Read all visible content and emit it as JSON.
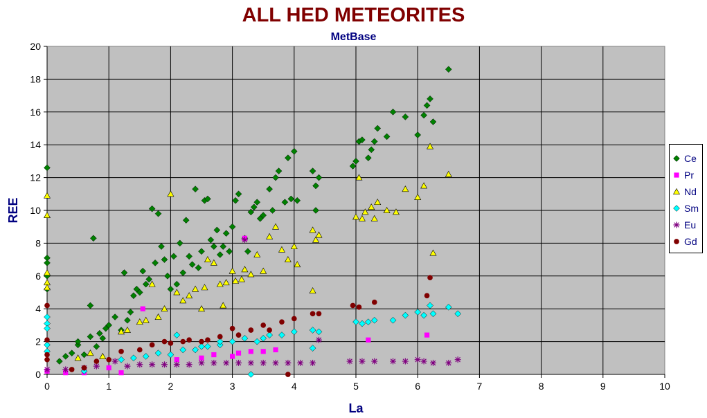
{
  "chart_data": {
    "type": "scatter",
    "title": "ALL HED METEORITES",
    "subtitle": "MetBase",
    "xlabel": "La",
    "ylabel": "REE",
    "xlim": [
      0,
      10
    ],
    "ylim": [
      0,
      20
    ],
    "x_ticks": [
      0,
      1,
      2,
      3,
      4,
      5,
      6,
      7,
      8,
      9,
      10
    ],
    "y_ticks": [
      0,
      2,
      4,
      6,
      8,
      10,
      12,
      14,
      16,
      18,
      20
    ],
    "grid": true,
    "plot_background": "#c0c0c0",
    "legend_position": "right",
    "series": [
      {
        "name": "Ce",
        "color": "#008000",
        "marker": "diamond",
        "points": [
          [
            0,
            12.6
          ],
          [
            0,
            7.1
          ],
          [
            0,
            6.8
          ],
          [
            0,
            6.0
          ],
          [
            0,
            5.2
          ],
          [
            0.2,
            0.8
          ],
          [
            0.3,
            1.1
          ],
          [
            0.4,
            1.3
          ],
          [
            0.5,
            1.8
          ],
          [
            0.5,
            2.0
          ],
          [
            0.6,
            1.2
          ],
          [
            0.7,
            2.3
          ],
          [
            0.7,
            4.2
          ],
          [
            0.75,
            8.3
          ],
          [
            0.8,
            1.7
          ],
          [
            0.85,
            2.5
          ],
          [
            0.9,
            2.2
          ],
          [
            0.95,
            2.8
          ],
          [
            1.0,
            3.0
          ],
          [
            1.1,
            3.5
          ],
          [
            1.2,
            2.7
          ],
          [
            1.25,
            6.2
          ],
          [
            1.3,
            3.3
          ],
          [
            1.35,
            3.8
          ],
          [
            1.4,
            4.8
          ],
          [
            1.45,
            5.2
          ],
          [
            1.5,
            5.0
          ],
          [
            1.55,
            6.3
          ],
          [
            1.6,
            5.5
          ],
          [
            1.65,
            5.8
          ],
          [
            1.7,
            10.1
          ],
          [
            1.75,
            6.8
          ],
          [
            1.8,
            9.8
          ],
          [
            1.85,
            7.8
          ],
          [
            1.9,
            7.0
          ],
          [
            1.95,
            6.0
          ],
          [
            2.0,
            5.2
          ],
          [
            2.05,
            7.2
          ],
          [
            2.1,
            5.5
          ],
          [
            2.15,
            8.0
          ],
          [
            2.2,
            6.2
          ],
          [
            2.25,
            9.4
          ],
          [
            2.3,
            7.2
          ],
          [
            2.35,
            6.7
          ],
          [
            2.4,
            11.3
          ],
          [
            2.45,
            6.5
          ],
          [
            2.5,
            7.5
          ],
          [
            2.55,
            10.6
          ],
          [
            2.6,
            10.7
          ],
          [
            2.65,
            8.2
          ],
          [
            2.7,
            7.8
          ],
          [
            2.75,
            8.8
          ],
          [
            2.8,
            7.3
          ],
          [
            2.85,
            7.8
          ],
          [
            2.9,
            8.6
          ],
          [
            2.95,
            7.5
          ],
          [
            3.0,
            9.0
          ],
          [
            3.05,
            10.6
          ],
          [
            3.1,
            11.0
          ],
          [
            3.2,
            8.3
          ],
          [
            3.25,
            7.5
          ],
          [
            3.3,
            9.9
          ],
          [
            3.35,
            10.2
          ],
          [
            3.4,
            10.5
          ],
          [
            3.45,
            9.5
          ],
          [
            3.5,
            9.7
          ],
          [
            3.6,
            11.3
          ],
          [
            3.65,
            10.0
          ],
          [
            3.7,
            12.0
          ],
          [
            3.75,
            12.4
          ],
          [
            3.85,
            10.5
          ],
          [
            3.9,
            13.2
          ],
          [
            3.95,
            10.7
          ],
          [
            4.0,
            13.6
          ],
          [
            4.05,
            10.6
          ],
          [
            4.3,
            12.4
          ],
          [
            4.35,
            11.5
          ],
          [
            4.4,
            12.0
          ],
          [
            4.35,
            10.0
          ],
          [
            4.95,
            12.7
          ],
          [
            5.0,
            13.0
          ],
          [
            5.05,
            14.2
          ],
          [
            5.1,
            14.3
          ],
          [
            5.2,
            13.2
          ],
          [
            5.25,
            13.7
          ],
          [
            5.3,
            14.2
          ],
          [
            5.35,
            15.0
          ],
          [
            5.5,
            14.5
          ],
          [
            5.6,
            16.0
          ],
          [
            5.8,
            15.7
          ],
          [
            6.0,
            14.6
          ],
          [
            6.1,
            15.8
          ],
          [
            6.15,
            16.4
          ],
          [
            6.2,
            16.8
          ],
          [
            6.25,
            15.4
          ],
          [
            6.5,
            18.6
          ]
        ]
      },
      {
        "name": "Pr",
        "color": "#ff00ff",
        "marker": "square",
        "points": [
          [
            0,
            0.2
          ],
          [
            0.3,
            0.1
          ],
          [
            0.6,
            0.1
          ],
          [
            1.0,
            0.4
          ],
          [
            1.2,
            0.1
          ],
          [
            1.55,
            4.0
          ],
          [
            2.1,
            0.9
          ],
          [
            2.5,
            1.0
          ],
          [
            2.7,
            1.2
          ],
          [
            3.0,
            1.1
          ],
          [
            3.1,
            1.3
          ],
          [
            3.2,
            8.3
          ],
          [
            3.3,
            1.4
          ],
          [
            3.5,
            1.4
          ],
          [
            3.7,
            1.5
          ],
          [
            5.2,
            2.1
          ],
          [
            6.15,
            2.4
          ]
        ]
      },
      {
        "name": "Nd",
        "color": "#ffff00",
        "marker": "triangle",
        "points": [
          [
            0,
            10.9
          ],
          [
            0,
            9.7
          ],
          [
            0,
            6.2
          ],
          [
            0,
            5.6
          ],
          [
            0,
            5.3
          ],
          [
            0.5,
            1.0
          ],
          [
            0.7,
            1.3
          ],
          [
            0.9,
            1.1
          ],
          [
            1.2,
            2.6
          ],
          [
            1.3,
            2.7
          ],
          [
            1.5,
            3.2
          ],
          [
            1.6,
            3.3
          ],
          [
            1.7,
            5.5
          ],
          [
            1.8,
            3.5
          ],
          [
            1.9,
            4.0
          ],
          [
            2.0,
            11.0
          ],
          [
            2.1,
            5.0
          ],
          [
            2.2,
            4.5
          ],
          [
            2.3,
            4.8
          ],
          [
            2.4,
            5.2
          ],
          [
            2.5,
            4.0
          ],
          [
            2.55,
            5.3
          ],
          [
            2.6,
            7.0
          ],
          [
            2.7,
            6.8
          ],
          [
            2.8,
            5.5
          ],
          [
            2.85,
            4.2
          ],
          [
            2.9,
            5.6
          ],
          [
            3.0,
            6.3
          ],
          [
            3.05,
            5.7
          ],
          [
            3.15,
            5.8
          ],
          [
            3.2,
            6.4
          ],
          [
            3.3,
            6.1
          ],
          [
            3.4,
            7.3
          ],
          [
            3.5,
            6.3
          ],
          [
            3.6,
            8.4
          ],
          [
            3.7,
            9.0
          ],
          [
            3.8,
            7.6
          ],
          [
            3.9,
            7.0
          ],
          [
            4.0,
            7.8
          ],
          [
            4.05,
            6.7
          ],
          [
            4.3,
            8.8
          ],
          [
            4.35,
            8.2
          ],
          [
            4.4,
            8.5
          ],
          [
            4.3,
            5.1
          ],
          [
            5.0,
            9.6
          ],
          [
            5.05,
            12.0
          ],
          [
            5.1,
            9.5
          ],
          [
            5.15,
            9.9
          ],
          [
            5.25,
            10.2
          ],
          [
            5.3,
            9.5
          ],
          [
            5.35,
            10.5
          ],
          [
            5.5,
            10.0
          ],
          [
            5.65,
            9.9
          ],
          [
            5.8,
            11.3
          ],
          [
            6.0,
            10.8
          ],
          [
            6.1,
            11.5
          ],
          [
            6.2,
            13.9
          ],
          [
            6.25,
            7.4
          ],
          [
            6.5,
            12.2
          ]
        ]
      },
      {
        "name": "Sm",
        "color": "#00ffff",
        "marker": "diamond",
        "points": [
          [
            0,
            3.5
          ],
          [
            0,
            3.1
          ],
          [
            0,
            2.8
          ],
          [
            0,
            1.8
          ],
          [
            0,
            1.4
          ],
          [
            0.6,
            0.2
          ],
          [
            1.2,
            0.9
          ],
          [
            1.4,
            1.0
          ],
          [
            1.6,
            1.1
          ],
          [
            1.8,
            1.3
          ],
          [
            2.0,
            1.2
          ],
          [
            2.1,
            2.4
          ],
          [
            2.2,
            1.5
          ],
          [
            2.4,
            1.5
          ],
          [
            2.5,
            1.7
          ],
          [
            2.6,
            1.7
          ],
          [
            2.8,
            1.8
          ],
          [
            3.0,
            2.0
          ],
          [
            3.2,
            2.2
          ],
          [
            3.4,
            2.0
          ],
          [
            3.5,
            2.2
          ],
          [
            3.6,
            2.4
          ],
          [
            3.8,
            2.4
          ],
          [
            4.0,
            2.6
          ],
          [
            4.3,
            2.7
          ],
          [
            4.3,
            1.6
          ],
          [
            4.4,
            2.6
          ],
          [
            5.0,
            3.2
          ],
          [
            5.1,
            3.1
          ],
          [
            5.2,
            3.2
          ],
          [
            5.3,
            3.3
          ],
          [
            5.6,
            3.3
          ],
          [
            5.8,
            3.6
          ],
          [
            6.0,
            3.8
          ],
          [
            6.1,
            3.6
          ],
          [
            6.2,
            4.2
          ],
          [
            6.25,
            3.7
          ],
          [
            6.5,
            4.1
          ],
          [
            6.65,
            3.7
          ],
          [
            2.8,
            2.0
          ],
          [
            3.3,
            0.0
          ]
        ]
      },
      {
        "name": "Eu",
        "color": "#800080",
        "marker": "star",
        "points": [
          [
            0,
            0.3
          ],
          [
            0.3,
            0.3
          ],
          [
            0.6,
            0.4
          ],
          [
            0.8,
            0.5
          ],
          [
            1.1,
            0.8
          ],
          [
            1.3,
            0.5
          ],
          [
            1.5,
            0.6
          ],
          [
            1.7,
            0.6
          ],
          [
            1.9,
            0.6
          ],
          [
            2.1,
            0.6
          ],
          [
            2.3,
            0.6
          ],
          [
            2.5,
            0.7
          ],
          [
            2.7,
            0.7
          ],
          [
            2.9,
            0.7
          ],
          [
            3.1,
            0.7
          ],
          [
            3.3,
            0.7
          ],
          [
            3.5,
            0.7
          ],
          [
            3.7,
            0.7
          ],
          [
            3.9,
            0.7
          ],
          [
            4.1,
            0.7
          ],
          [
            4.3,
            0.7
          ],
          [
            4.4,
            2.1
          ],
          [
            4.9,
            0.8
          ],
          [
            5.1,
            0.8
          ],
          [
            5.3,
            0.8
          ],
          [
            5.6,
            0.8
          ],
          [
            5.8,
            0.8
          ],
          [
            6.0,
            0.9
          ],
          [
            6.1,
            0.8
          ],
          [
            6.25,
            0.7
          ],
          [
            6.5,
            0.7
          ],
          [
            6.65,
            0.9
          ],
          [
            3.2,
            8.2
          ]
        ]
      },
      {
        "name": "Gd",
        "color": "#800000",
        "marker": "circle",
        "points": [
          [
            0,
            4.2
          ],
          [
            0,
            2.1
          ],
          [
            0,
            1.2
          ],
          [
            0,
            0.9
          ],
          [
            0.4,
            0.3
          ],
          [
            0.6,
            0.4
          ],
          [
            0.8,
            0.8
          ],
          [
            1.0,
            0.9
          ],
          [
            1.2,
            1.4
          ],
          [
            1.5,
            1.5
          ],
          [
            1.7,
            1.8
          ],
          [
            1.9,
            2.0
          ],
          [
            2.0,
            1.9
          ],
          [
            2.2,
            2.0
          ],
          [
            2.3,
            2.1
          ],
          [
            2.5,
            2.0
          ],
          [
            2.6,
            2.1
          ],
          [
            2.8,
            2.3
          ],
          [
            3.0,
            2.8
          ],
          [
            3.1,
            2.4
          ],
          [
            3.3,
            2.7
          ],
          [
            3.5,
            3.0
          ],
          [
            3.6,
            2.7
          ],
          [
            3.8,
            3.2
          ],
          [
            4.0,
            3.4
          ],
          [
            4.3,
            3.7
          ],
          [
            4.4,
            3.7
          ],
          [
            4.95,
            4.2
          ],
          [
            5.05,
            4.1
          ],
          [
            5.3,
            4.4
          ],
          [
            6.15,
            4.8
          ],
          [
            6.2,
            5.9
          ],
          [
            3.9,
            0.0
          ]
        ]
      }
    ]
  }
}
